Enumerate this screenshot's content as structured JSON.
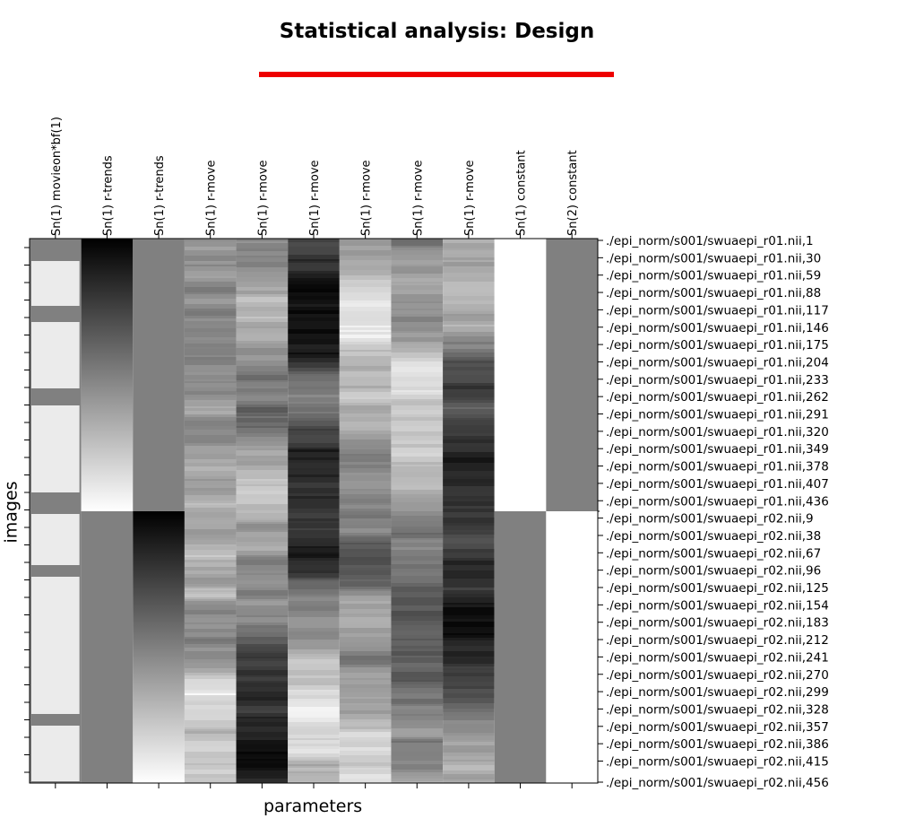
{
  "figure": {
    "title": "Statistical analysis: Design",
    "xlabel": "parameters",
    "ylabel": "images",
    "accent_color": "#ee0000"
  },
  "chart_data": {
    "type": "heatmap",
    "title": "Statistical analysis: Design",
    "xlabel": "parameters",
    "ylabel": "images",
    "colormap": "grayscale",
    "columns": [
      "Sn(1) movieon*bf(1)",
      "Sn(1) r-trends",
      "Sn(1) r-trends",
      "Sn(1) r-move",
      "Sn(1) r-move",
      "Sn(1) r-move",
      "Sn(1) r-move",
      "Sn(1) r-move",
      "Sn(1) r-move",
      "Sn(1) constant",
      "Sn(2) constant"
    ],
    "row_labels": [
      "./epi_norm/s001/swuaepi_r01.nii,1",
      "./epi_norm/s001/swuaepi_r01.nii,30",
      "./epi_norm/s001/swuaepi_r01.nii,59",
      "./epi_norm/s001/swuaepi_r01.nii,88",
      "./epi_norm/s001/swuaepi_r01.nii,117",
      "./epi_norm/s001/swuaepi_r01.nii,146",
      "./epi_norm/s001/swuaepi_r01.nii,175",
      "./epi_norm/s001/swuaepi_r01.nii,204",
      "./epi_norm/s001/swuaepi_r01.nii,233",
      "./epi_norm/s001/swuaepi_r01.nii,262",
      "./epi_norm/s001/swuaepi_r01.nii,291",
      "./epi_norm/s001/swuaepi_r01.nii,320",
      "./epi_norm/s001/swuaepi_r01.nii,349",
      "./epi_norm/s001/swuaepi_r01.nii,378",
      "./epi_norm/s001/swuaepi_r01.nii,407",
      "./epi_norm/s001/swuaepi_r01.nii,436",
      "./epi_norm/s001/swuaepi_r02.nii,9",
      "./epi_norm/s001/swuaepi_r02.nii,38",
      "./epi_norm/s001/swuaepi_r02.nii,67",
      "./epi_norm/s001/swuaepi_r02.nii,96",
      "./epi_norm/s001/swuaepi_r02.nii,125",
      "./epi_norm/s001/swuaepi_r02.nii,154",
      "./epi_norm/s001/swuaepi_r02.nii,183",
      "./epi_norm/s001/swuaepi_r02.nii,212",
      "./epi_norm/s001/swuaepi_r02.nii,241",
      "./epi_norm/s001/swuaepi_r02.nii,270",
      "./epi_norm/s001/swuaepi_r02.nii,299",
      "./epi_norm/s001/swuaepi_r02.nii,328",
      "./epi_norm/s001/swuaepi_r02.nii,357",
      "./epi_norm/s001/swuaepi_r02.nii,386",
      "./epi_norm/s001/swuaepi_r02.nii,415",
      "./epi_norm/s001/swuaepi_r02.nii,456"
    ],
    "sessions": [
      {
        "name": "r01",
        "first_scan": 1,
        "last_scan": 436
      },
      {
        "name": "r02",
        "first_scan": 9,
        "last_scan": 456
      }
    ],
    "grid": false
  }
}
